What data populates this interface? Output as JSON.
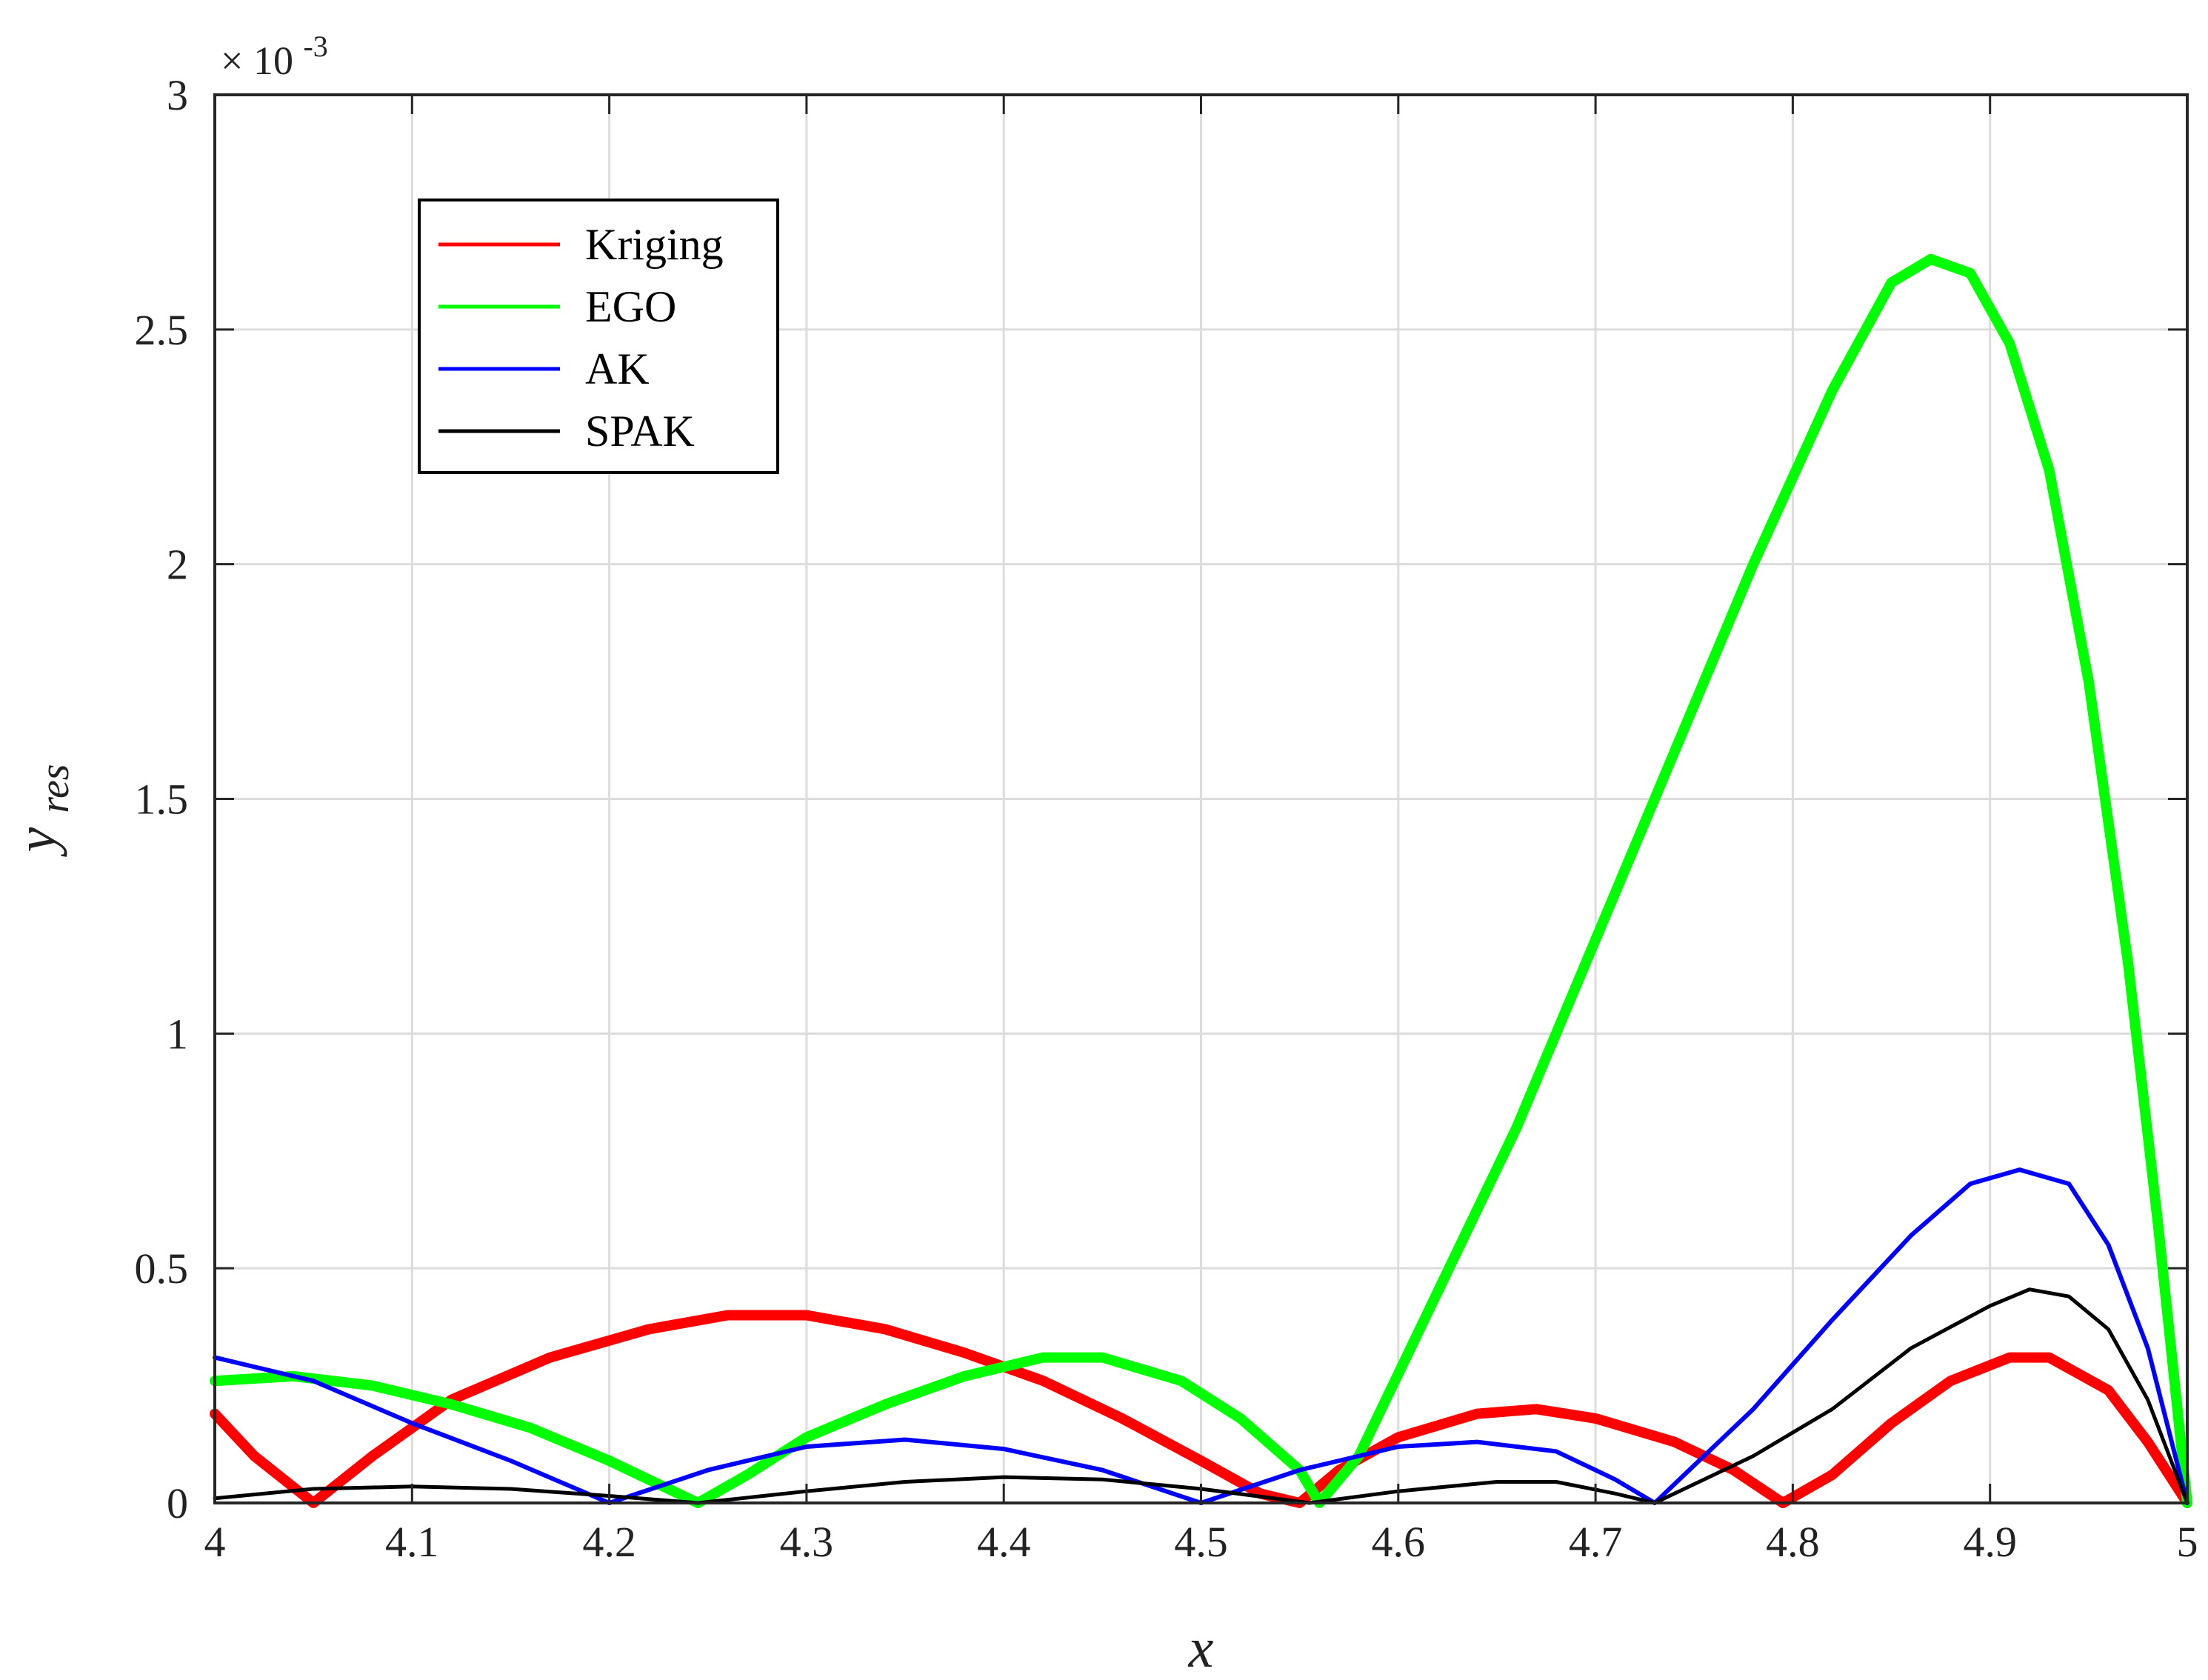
{
  "chart_data": {
    "type": "line",
    "xlabel": "x",
    "ylabel": {
      "base": "y",
      "subscript": "res"
    },
    "xlim": [
      4,
      5
    ],
    "ylim": [
      0,
      3
    ],
    "y_multiplier": {
      "base": "× 10",
      "exponent": "-3"
    },
    "grid": true,
    "legend_placement": "top-left",
    "x_ticks": [
      "4",
      "4.1",
      "4.2",
      "4.3",
      "4.4",
      "4.5",
      "4.6",
      "4.7",
      "4.8",
      "4.9",
      "5"
    ],
    "y_ticks": [
      "0",
      "0.5",
      "1",
      "1.5",
      "2",
      "2.5",
      "3"
    ],
    "series": [
      {
        "name": "Kriging",
        "color": "#ff0000",
        "points": [
          [
            4.0,
            0.19
          ],
          [
            4.02,
            0.1
          ],
          [
            4.05,
            0.0
          ],
          [
            4.08,
            0.1
          ],
          [
            4.12,
            0.22
          ],
          [
            4.17,
            0.31
          ],
          [
            4.22,
            0.37
          ],
          [
            4.26,
            0.4
          ],
          [
            4.3,
            0.4
          ],
          [
            4.34,
            0.37
          ],
          [
            4.38,
            0.32
          ],
          [
            4.42,
            0.26
          ],
          [
            4.46,
            0.18
          ],
          [
            4.5,
            0.09
          ],
          [
            4.53,
            0.02
          ],
          [
            4.55,
            0.0
          ],
          [
            4.57,
            0.07
          ],
          [
            4.6,
            0.14
          ],
          [
            4.64,
            0.19
          ],
          [
            4.67,
            0.2
          ],
          [
            4.7,
            0.18
          ],
          [
            4.74,
            0.13
          ],
          [
            4.77,
            0.07
          ],
          [
            4.795,
            0.0
          ],
          [
            4.82,
            0.06
          ],
          [
            4.85,
            0.17
          ],
          [
            4.88,
            0.26
          ],
          [
            4.91,
            0.31
          ],
          [
            4.93,
            0.31
          ],
          [
            4.96,
            0.24
          ],
          [
            4.98,
            0.13
          ],
          [
            5.0,
            0.0
          ]
        ]
      },
      {
        "name": "EGO",
        "color": "#00ff00",
        "points": [
          [
            4.0,
            0.26
          ],
          [
            4.04,
            0.27
          ],
          [
            4.08,
            0.25
          ],
          [
            4.12,
            0.21
          ],
          [
            4.16,
            0.16
          ],
          [
            4.2,
            0.09
          ],
          [
            4.245,
            0.0
          ],
          [
            4.27,
            0.06
          ],
          [
            4.3,
            0.14
          ],
          [
            4.34,
            0.21
          ],
          [
            4.38,
            0.27
          ],
          [
            4.42,
            0.31
          ],
          [
            4.45,
            0.31
          ],
          [
            4.49,
            0.26
          ],
          [
            4.52,
            0.18
          ],
          [
            4.55,
            0.07
          ],
          [
            4.56,
            0.0
          ],
          [
            4.58,
            0.1
          ],
          [
            4.62,
            0.45
          ],
          [
            4.66,
            0.8
          ],
          [
            4.7,
            1.2
          ],
          [
            4.74,
            1.6
          ],
          [
            4.78,
            2.0
          ],
          [
            4.82,
            2.37
          ],
          [
            4.85,
            2.6
          ],
          [
            4.87,
            2.65
          ],
          [
            4.89,
            2.62
          ],
          [
            4.91,
            2.47
          ],
          [
            4.93,
            2.2
          ],
          [
            4.95,
            1.75
          ],
          [
            4.97,
            1.15
          ],
          [
            4.985,
            0.6
          ],
          [
            5.0,
            0.0
          ]
        ]
      },
      {
        "name": "AK",
        "color": "#0000ff",
        "points": [
          [
            4.0,
            0.31
          ],
          [
            4.05,
            0.26
          ],
          [
            4.1,
            0.17
          ],
          [
            4.15,
            0.09
          ],
          [
            4.2,
            0.0
          ],
          [
            4.25,
            0.07
          ],
          [
            4.3,
            0.12
          ],
          [
            4.35,
            0.135
          ],
          [
            4.4,
            0.115
          ],
          [
            4.45,
            0.07
          ],
          [
            4.5,
            0.0
          ],
          [
            4.55,
            0.07
          ],
          [
            4.6,
            0.12
          ],
          [
            4.64,
            0.13
          ],
          [
            4.68,
            0.11
          ],
          [
            4.71,
            0.05
          ],
          [
            4.73,
            0.0
          ],
          [
            4.78,
            0.2
          ],
          [
            4.82,
            0.39
          ],
          [
            4.86,
            0.57
          ],
          [
            4.89,
            0.68
          ],
          [
            4.915,
            0.71
          ],
          [
            4.94,
            0.68
          ],
          [
            4.96,
            0.55
          ],
          [
            4.98,
            0.33
          ],
          [
            5.0,
            0.0
          ]
        ]
      },
      {
        "name": "SPAK",
        "color": "#000000",
        "points": [
          [
            4.0,
            0.01
          ],
          [
            4.05,
            0.03
          ],
          [
            4.1,
            0.035
          ],
          [
            4.15,
            0.03
          ],
          [
            4.2,
            0.015
          ],
          [
            4.245,
            0.0
          ],
          [
            4.3,
            0.025
          ],
          [
            4.35,
            0.045
          ],
          [
            4.4,
            0.055
          ],
          [
            4.45,
            0.05
          ],
          [
            4.5,
            0.03
          ],
          [
            4.555,
            0.0
          ],
          [
            4.6,
            0.025
          ],
          [
            4.65,
            0.045
          ],
          [
            4.68,
            0.045
          ],
          [
            4.71,
            0.02
          ],
          [
            4.73,
            0.0
          ],
          [
            4.78,
            0.1
          ],
          [
            4.82,
            0.2
          ],
          [
            4.86,
            0.33
          ],
          [
            4.9,
            0.42
          ],
          [
            4.92,
            0.455
          ],
          [
            4.94,
            0.44
          ],
          [
            4.96,
            0.37
          ],
          [
            4.98,
            0.22
          ],
          [
            5.0,
            0.0
          ]
        ]
      }
    ]
  }
}
